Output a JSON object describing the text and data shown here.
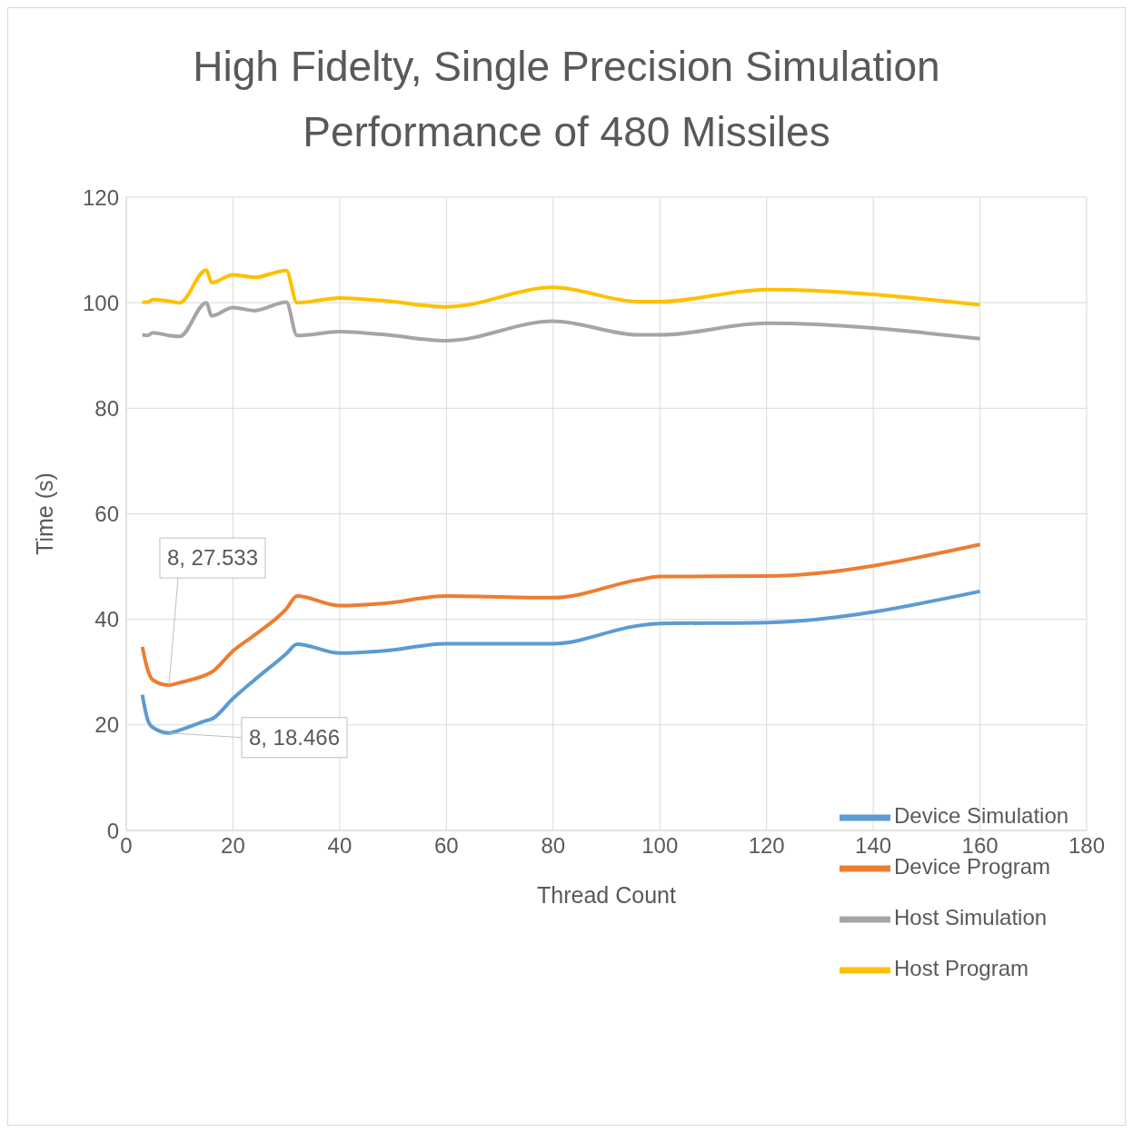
{
  "chart_data": {
    "type": "line",
    "title": "High Fidelty, Single Precision Simulation Performance of 480 Missiles",
    "xlabel": "Thread Count",
    "ylabel": "Time (s)",
    "x": [
      3,
      4,
      5,
      8,
      10,
      15,
      16,
      20,
      24,
      30,
      32,
      40,
      48,
      60,
      80,
      96,
      100,
      120,
      160
    ],
    "series": [
      {
        "name": "Device Simulation",
        "color": "#5b9bd5",
        "values": [
          25.7,
          21,
          19.5,
          18.466,
          19,
          20.8,
          21.1,
          25,
          28.5,
          33.5,
          35.3,
          33.6,
          34,
          35.4,
          35.4,
          38.8,
          39.2,
          39.4,
          45.3
        ]
      },
      {
        "name": "Device Program",
        "color": "#ed7d31",
        "values": [
          34.8,
          30.5,
          28.5,
          27.533,
          28,
          29.5,
          30,
          34,
          37,
          42,
          44.4,
          42.6,
          43,
          44.4,
          44.1,
          47.5,
          48.1,
          48.2,
          54.2
        ]
      },
      {
        "name": "Host Simulation",
        "color": "#a5a5a5",
        "values": [
          93.9,
          93.8,
          94.3,
          93.8,
          93.6,
          100,
          97.5,
          99.1,
          98.5,
          100.1,
          93.8,
          94.5,
          94,
          92.8,
          96.5,
          93.9,
          93.9,
          96.1,
          93.2
        ]
      },
      {
        "name": "Host Program",
        "color": "#ffc000",
        "values": [
          100.1,
          100.1,
          100.6,
          100.3,
          100,
          106.2,
          103.8,
          105.3,
          104.8,
          106.1,
          100,
          100.9,
          100.4,
          99.2,
          102.9,
          100.2,
          100.2,
          102.5,
          99.6
        ]
      }
    ],
    "xlim": [
      0,
      180
    ],
    "xticks": [
      0,
      20,
      40,
      60,
      80,
      100,
      120,
      140,
      160,
      180
    ],
    "ylim": [
      0,
      120
    ],
    "yticks": [
      0,
      20,
      40,
      60,
      80,
      100,
      120
    ],
    "grid": true,
    "legend": "bottom right",
    "marker": "none",
    "line_style": "solid",
    "annotations": [
      {
        "text": "8, 27.533",
        "x": 8,
        "y": 27.533
      },
      {
        "text": "8, 18.466",
        "x": 8,
        "y": 18.466
      }
    ]
  }
}
